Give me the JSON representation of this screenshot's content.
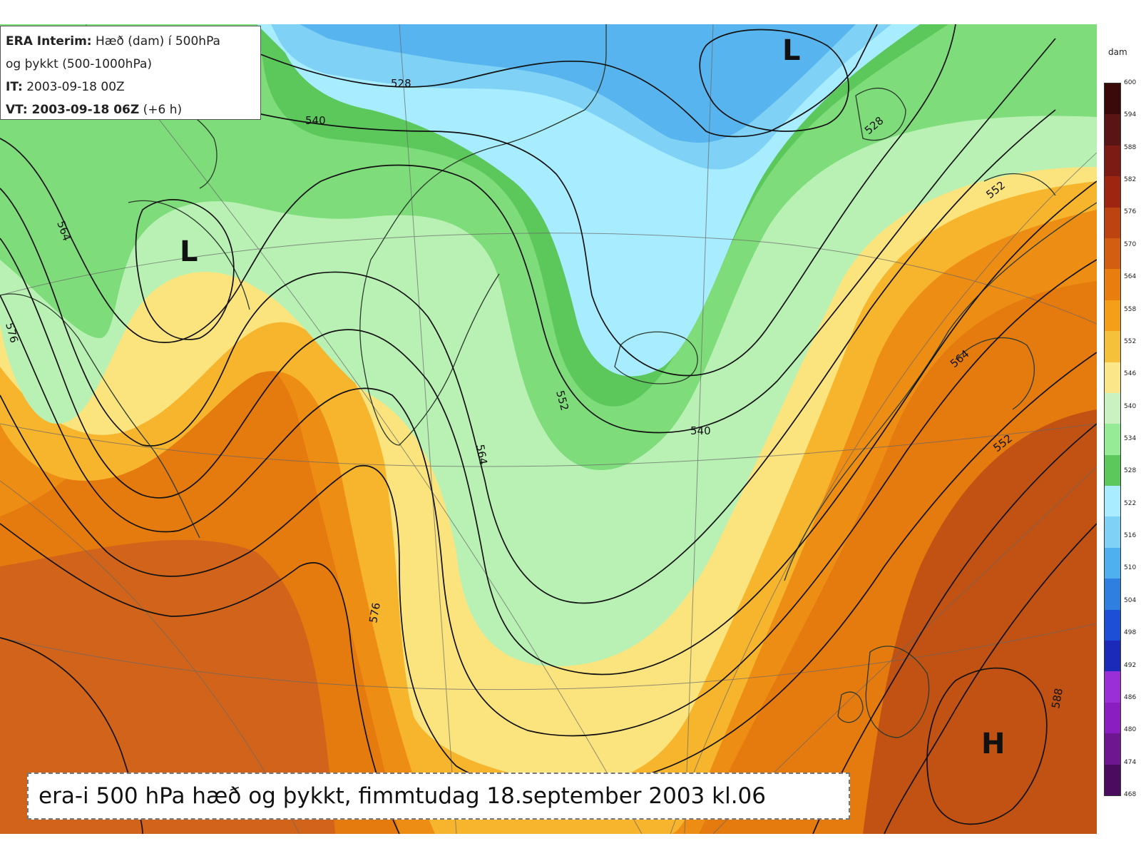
{
  "map": {
    "info_box": {
      "title_bold": "ERA Interim:",
      "title_rest": " Hæð (dam) í 500hPa",
      "line2": "og þykkt (500-1000hPa)",
      "it_label": "IT:",
      "it_value": " 2003-09-18 00Z",
      "vt_label": "VT:",
      "vt_value": " 2003-09-18 06Z",
      "vt_extra": " (+6 h)"
    },
    "caption": "era-i 500 hPa hæð og þykkt, fimmtudag 18.september 2003 kl.06",
    "pressure_centers": [
      {
        "type": "L",
        "label": "L"
      },
      {
        "type": "L",
        "label": "L"
      },
      {
        "type": "H",
        "label": "H"
      }
    ],
    "contour_labels": [
      "528",
      "540",
      "528",
      "552",
      "564",
      "576",
      "552",
      "564",
      "540",
      "564",
      "552",
      "576",
      "564",
      "576",
      "588"
    ],
    "colorbar": {
      "unit": "dam",
      "ticks": [
        "600",
        "594",
        "588",
        "582",
        "576",
        "570",
        "564",
        "558",
        "552",
        "546",
        "540",
        "534",
        "528",
        "522",
        "516",
        "510",
        "504",
        "498",
        "492",
        "486",
        "480",
        "474",
        "468"
      ],
      "colors": [
        "#3a0a0a",
        "#5a1414",
        "#7c1a14",
        "#9e2610",
        "#bd4410",
        "#d35d10",
        "#e97e0f",
        "#f59e18",
        "#f5c13a",
        "#fbe78a",
        "#c9f2c0",
        "#96ec96",
        "#5cc85c",
        "#a9ecff",
        "#7fd2f5",
        "#4fb0ef",
        "#2e7fe0",
        "#1d4fd6",
        "#1b2ab8",
        "#9a2fd8",
        "#8a1ec0",
        "#6e1690",
        "#4b0c60"
      ]
    }
  }
}
